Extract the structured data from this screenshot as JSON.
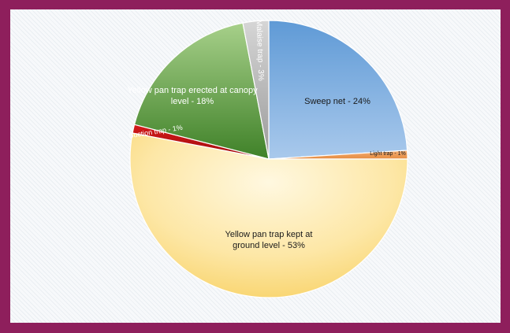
{
  "chart_data": {
    "type": "pie",
    "title": "",
    "slices": [
      {
        "label": "Sweep net - 24%",
        "value": 24,
        "color": "#7eaee0"
      },
      {
        "label": "Light trap - 1%",
        "value": 1,
        "color": "#f1a060"
      },
      {
        "label": "Yellow pan trap kept at ground level - 53%",
        "value": 53,
        "color": "#fbe6a0"
      },
      {
        "label": "Suction trap - 1%",
        "value": 1,
        "color": "#c01414"
      },
      {
        "label": "Yellow pan trap erected at canopy level - 18%",
        "value": 18,
        "color": "#6aab45"
      },
      {
        "label": "Malaise trap - 3%",
        "value": 3,
        "color": "#b4b4b4"
      }
    ],
    "legend": "none"
  },
  "colors": {
    "frame": "#8e1f5c",
    "background": "#f7f9fb"
  }
}
